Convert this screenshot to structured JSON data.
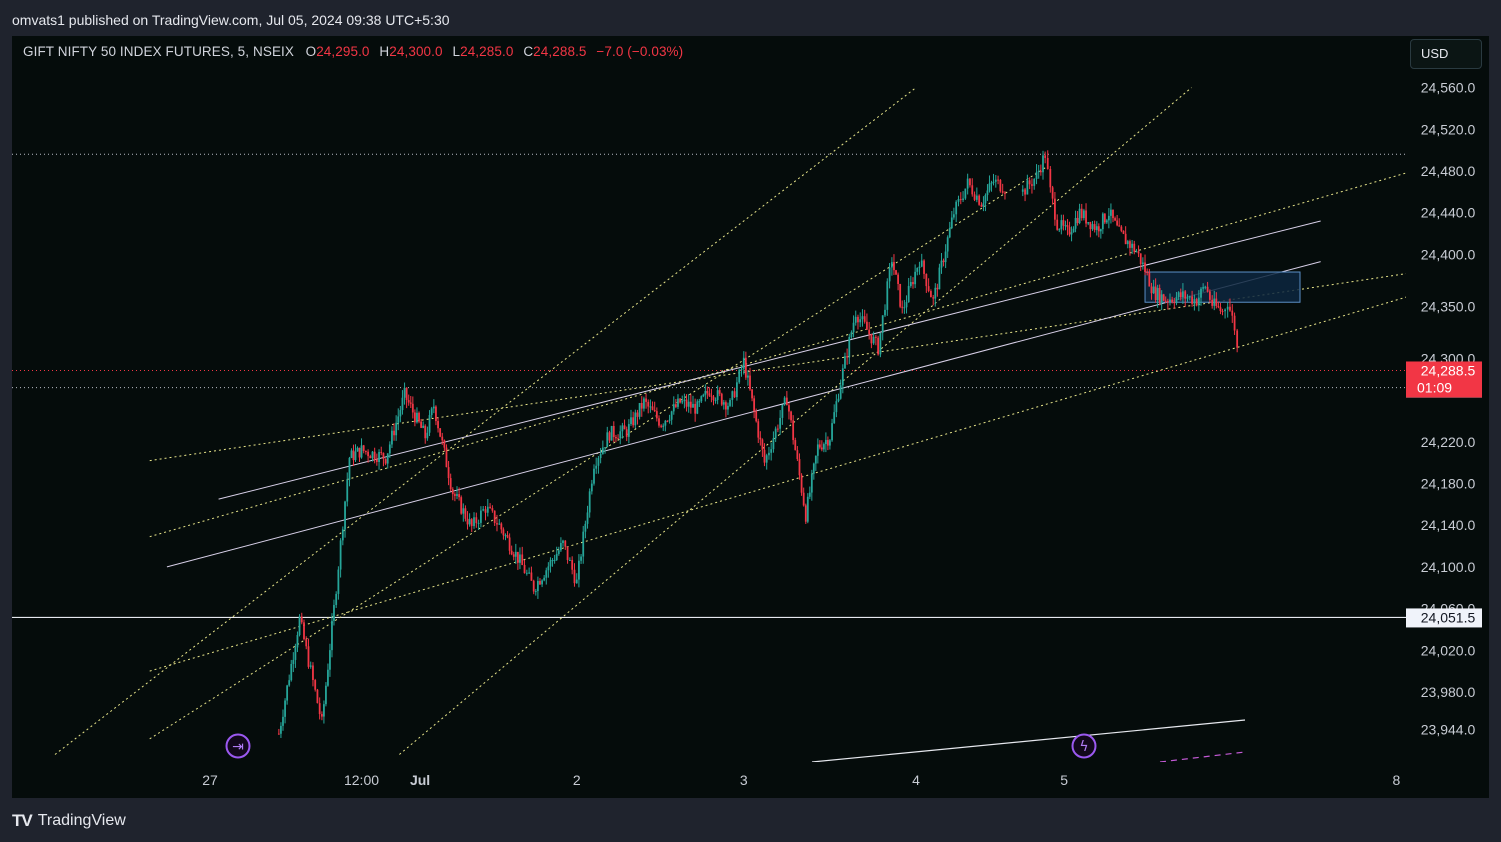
{
  "publisher_line": "omvats1 published on TradingView.com, Jul 05, 2024 09:38 UTC+5:30",
  "legend": {
    "symbol": "GIFT NIFTY 50 INDEX FUTURES, 5, NSEIX",
    "o_label": "O",
    "o_value": "24,295.0",
    "h_label": "H",
    "h_value": "24,300.0",
    "l_label": "L",
    "l_value": "24,285.0",
    "c_label": "C",
    "c_value": "24,288.5",
    "change": "−7.0 (−0.03%)"
  },
  "currency": "USD",
  "footer": {
    "logo_mark": "TV",
    "brand": "TradingView"
  },
  "colors": {
    "background": "#050c0b",
    "up": "#26a69a",
    "down": "#f23645",
    "trendline_yellow": "#e8e58a",
    "trendline_white": "#d8d0e8",
    "last_price_tag": "#f23645",
    "range_box": "#5b8fc7"
  },
  "chart_data": {
    "type": "candlestick",
    "symbol": "GIFT NIFTY 50 INDEX FUTURES",
    "interval": "5",
    "exchange": "NSEIX",
    "ylim": [
      23920,
      24600
    ],
    "y_ticks": [
      "24,560.0",
      "24,520.0",
      "24,480.0",
      "24,440.0",
      "24,400.0",
      "24,350.0",
      "24,300.0",
      "24,220.0",
      "24,180.0",
      "24,140.0",
      "24,100.0",
      "24,060.0",
      "24,020.0",
      "23,980.0",
      "23,944.0"
    ],
    "x_ticks": [
      "27",
      "12:00",
      "Jul",
      "2",
      "3",
      "4",
      "5",
      "8"
    ],
    "last_price": {
      "value": 24288.5,
      "label": "24,288.5",
      "countdown": "01:09"
    },
    "horizontal_levels": [
      {
        "value": 24272.0,
        "label": "24,272.0",
        "style": "dotted"
      },
      {
        "value": 24051.5,
        "label": "24,051.5",
        "style": "solid"
      },
      {
        "value": 24496.0,
        "label": "",
        "style": "dotted"
      }
    ],
    "price_path_t": [
      2.3,
      2.42,
      2.55,
      2.62,
      2.71,
      2.78,
      2.92,
      3.03,
      3.15,
      3.2,
      3.31,
      3.42,
      3.5,
      3.58,
      3.7,
      3.78,
      3.95,
      4.03,
      4.13,
      4.22,
      4.32,
      4.42,
      4.52,
      4.63,
      4.73,
      4.8,
      4.92,
      5.0,
      5.12,
      5.25,
      5.36,
      5.43,
      5.5,
      5.55,
      5.65,
      5.78,
      5.86,
      5.92,
      6.02,
      6.1,
      6.22,
      6.3,
      6.38,
      6.45,
      6.53
    ],
    "price_path_v": [
      23940,
      24050,
      23950,
      24060,
      24205,
      24212,
      24205,
      24265,
      24225,
      24255,
      24172,
      24138,
      24157,
      24140,
      24105,
      24080,
      24122,
      24085,
      24200,
      24228,
      24230,
      24258,
      24238,
      24258,
      24252,
      24270,
      24255,
      24297,
      24200,
      24262,
      24150,
      24215,
      24225,
      24268,
      24345,
      24310,
      24396,
      24345,
      24395,
      24355,
      24440,
      24468,
      24450,
      24470,
      24463
    ],
    "price_path_t2": [
      6.62,
      6.7,
      6.75,
      6.78,
      6.82,
      6.88,
      6.95,
      7.05,
      7.12,
      7.18,
      7.28,
      7.33,
      7.38,
      7.45,
      7.55,
      7.63,
      7.68,
      7.72,
      7.78,
      7.81,
      7.85,
      7.88
    ],
    "price_path_v2": [
      24460,
      24475,
      24496,
      24460,
      24430,
      24420,
      24440,
      24425,
      24440,
      24420,
      24403,
      24385,
      24364,
      24357,
      24360,
      24356,
      24370,
      24352,
      24345,
      24355,
      24330,
      24288
    ],
    "range_box": {
      "t": [
        7.33,
        8.23
      ],
      "v": [
        24354,
        24383
      ]
    },
    "trendlines": [
      {
        "color": "yellow",
        "t": [
          1.55,
          8.95
        ],
        "v": [
          24202,
          24384
        ]
      },
      {
        "color": "yellow",
        "t": [
          1.55,
          8.95
        ],
        "v": [
          24129,
          24483
        ]
      },
      {
        "color": "yellow",
        "t": [
          1.55,
          6.75
        ],
        "v": [
          23935,
          24483
        ]
      },
      {
        "color": "yellow",
        "t": [
          1.55,
          8.95
        ],
        "v": [
          24000,
          24364
        ]
      },
      {
        "color": "yellow",
        "t": [
          1.0,
          6.0
        ],
        "v": [
          23920,
          24560
        ]
      },
      {
        "color": "yellow",
        "t": [
          3.0,
          7.6
        ],
        "v": [
          23920,
          24560
        ]
      },
      {
        "color": "white",
        "t": [
          1.95,
          8.35
        ],
        "v": [
          24165,
          24432
        ]
      },
      {
        "color": "white",
        "t": [
          1.65,
          8.35
        ],
        "v": [
          24100,
          24393
        ]
      }
    ],
    "time_ticks_t": [
      1.9,
      2.78,
      3.12,
      4.03,
      5.0,
      6.0,
      6.86,
      8.79
    ],
    "grid": false,
    "legend_position": "top-left",
    "markers": [
      "fast-forward-icon",
      "lightning-icon"
    ]
  }
}
